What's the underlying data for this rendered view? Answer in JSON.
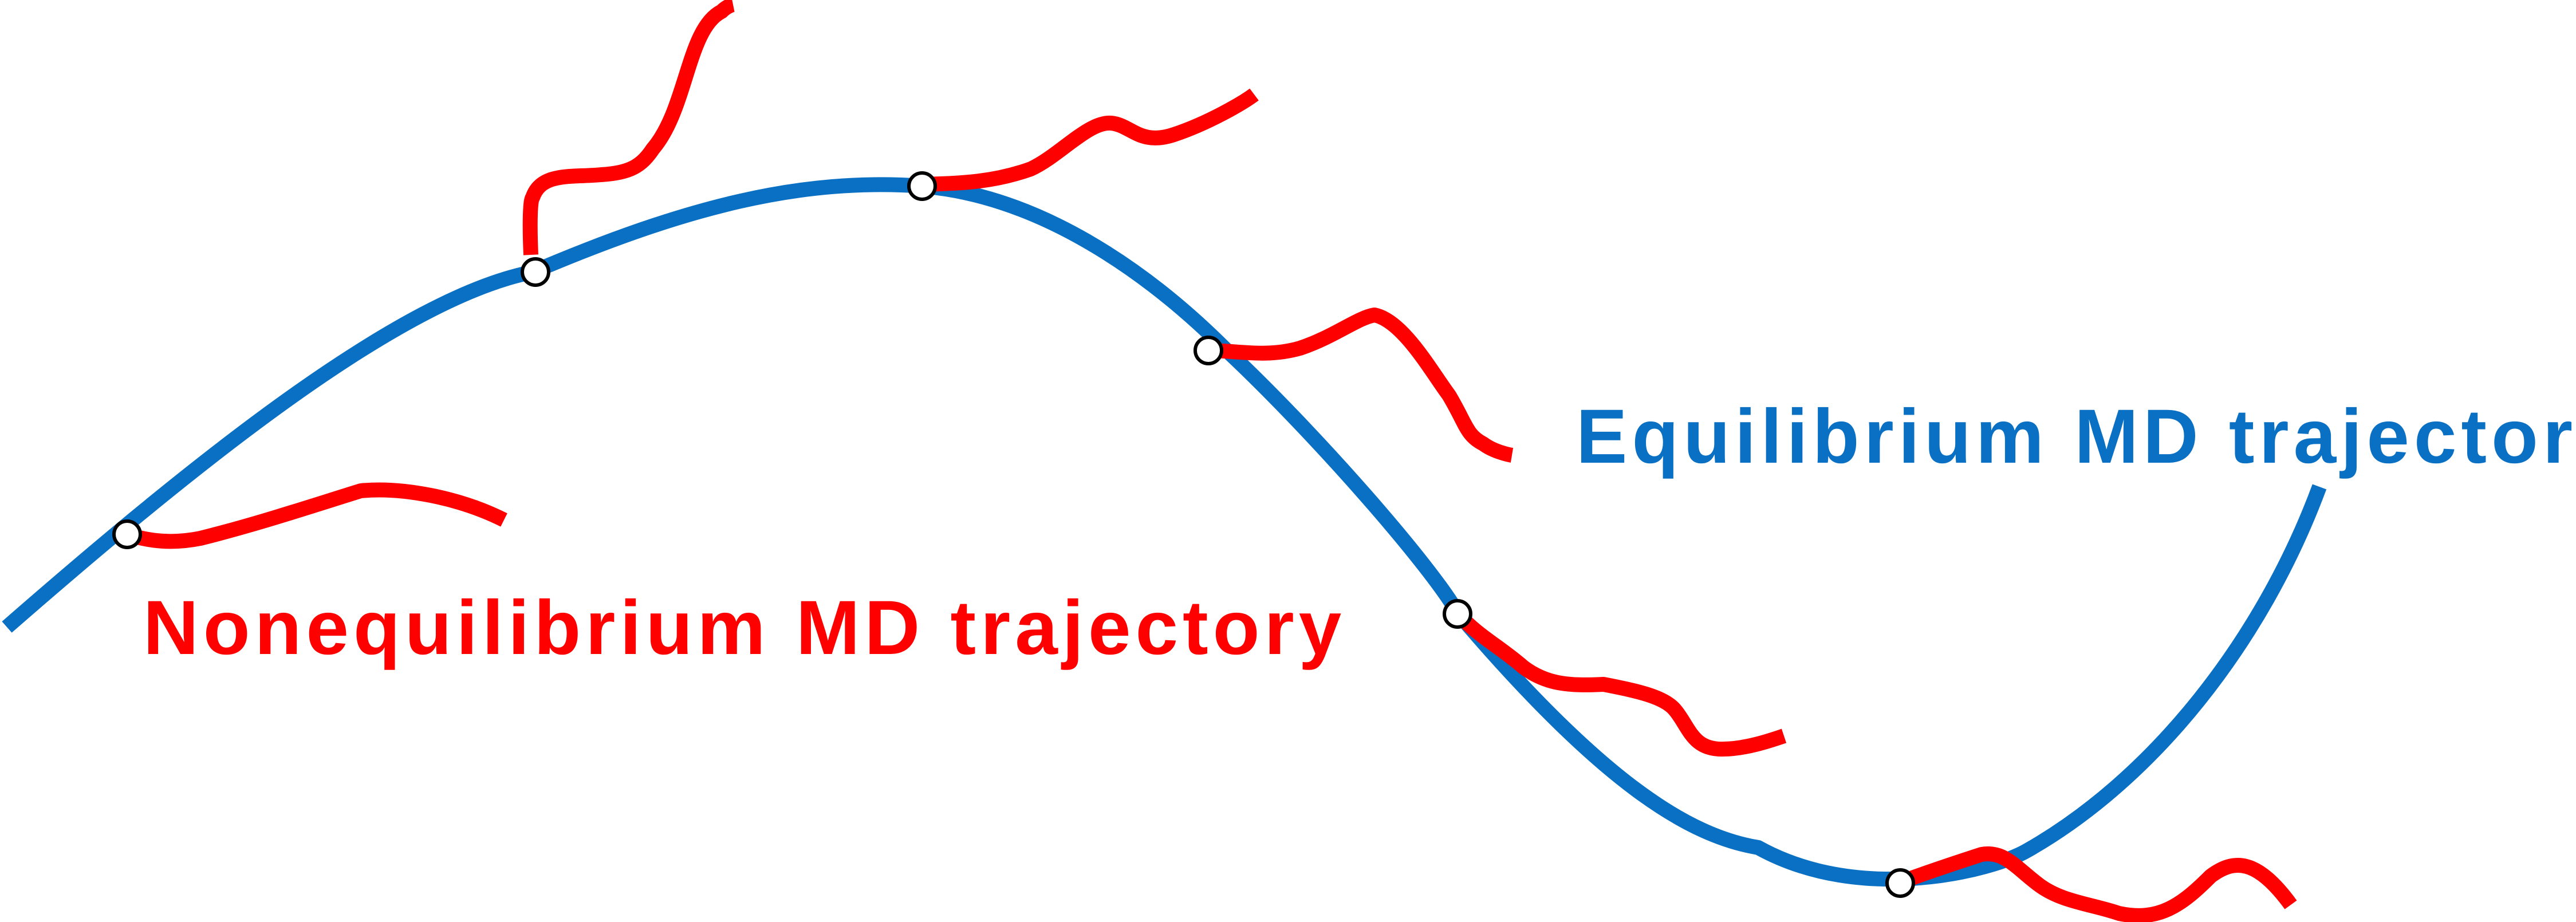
{
  "labels": {
    "equilibrium": "Equilibrium MD trajectory",
    "nonequilibrium": "Nonequilibrium MD trajectory"
  },
  "colors": {
    "equilibrium": "#0a70c4",
    "nonequilibrium": "#ff0000",
    "marker_fill": "#ffffff",
    "marker_stroke": "#000000"
  },
  "equilibrium_trajectory": {
    "name": "Equilibrium MD trajectory"
  },
  "nonequilibrium_trajectories": [
    {
      "name": "Nonequilibrium MD trajectory"
    },
    {
      "name": "Nonequilibrium MD trajectory"
    },
    {
      "name": "Nonequilibrium MD trajectory"
    },
    {
      "name": "Nonequilibrium MD trajectory"
    },
    {
      "name": "Nonequilibrium MD trajectory"
    },
    {
      "name": "Nonequilibrium MD trajectory"
    },
    {
      "name": "Nonequilibrium MD trajectory"
    }
  ]
}
